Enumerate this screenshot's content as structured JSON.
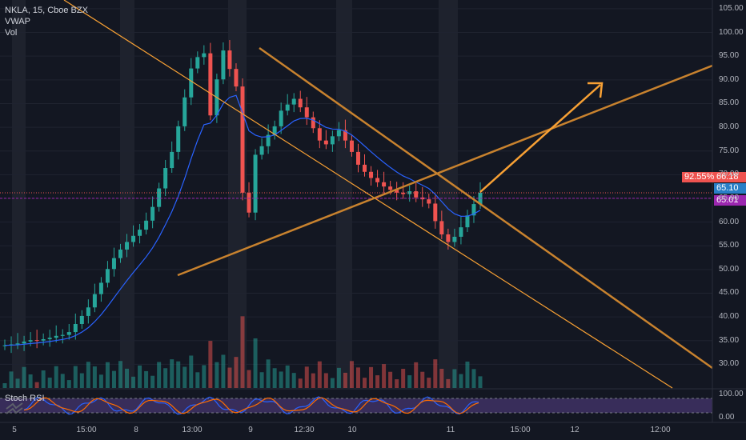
{
  "legend": {
    "title": "NKLA, 15, Cboe BZX",
    "vwap": "VWAP",
    "vol": "Vol"
  },
  "stoch_label": "Stoch RSI",
  "price_tags": {
    "pct": "92.55%",
    "last": "66.18",
    "vwap": "65.10",
    "line": "65.01",
    "colors": {
      "last": "#ef5350",
      "vwap": "#2a7fc7",
      "line": "#9c27b0"
    }
  },
  "chart_data": {
    "type": "candlestick",
    "title": "NKLA, 15, Cboe BZX",
    "ylim": [
      25,
      106
    ],
    "yticks": [
      "105.00",
      "100.00",
      "95.00",
      "90.00",
      "85.00",
      "80.00",
      "75.00",
      "70.00",
      "65.00",
      "60.00",
      "55.00",
      "50.00",
      "45.00",
      "40.00",
      "35.00",
      "30.00"
    ],
    "xticks": [
      "5",
      "15:00",
      "8",
      "13:00",
      "9",
      "12:30",
      "10",
      "11",
      "15:00",
      "12",
      "12:00"
    ],
    "close_series": [
      34.0,
      34.2,
      34.4,
      34.8,
      35.1,
      35.0,
      35.3,
      35.6,
      36.0,
      36.2,
      36.8,
      38.5,
      40.2,
      42.0,
      44.8,
      47.2,
      50.1,
      52.4,
      54.2,
      55.8,
      57.1,
      58.4,
      60.3,
      63.2,
      67.1,
      71.4,
      74.8,
      80.2,
      86.3,
      92.4,
      94.8,
      95.6,
      82.5,
      90.1,
      96.2,
      92.3,
      88.6,
      66.2,
      62.0,
      74.2,
      76.0,
      78.4,
      80.2,
      83.5,
      84.8,
      86.0,
      84.2,
      82.1,
      79.8,
      77.2,
      76.4,
      78.1,
      79.4,
      77.2,
      74.8,
      72.1,
      70.6,
      69.3,
      68.4,
      67.5,
      66.8,
      66.2,
      65.9,
      66.5,
      65.2,
      64.8,
      63.9,
      60.2,
      57.4,
      55.8,
      56.9,
      58.9,
      61.4,
      63.8,
      66.18
    ],
    "stoch_rsi": {
      "ylim": [
        0,
        100
      ],
      "ticks": [
        "100.00",
        "0.00"
      ]
    }
  }
}
